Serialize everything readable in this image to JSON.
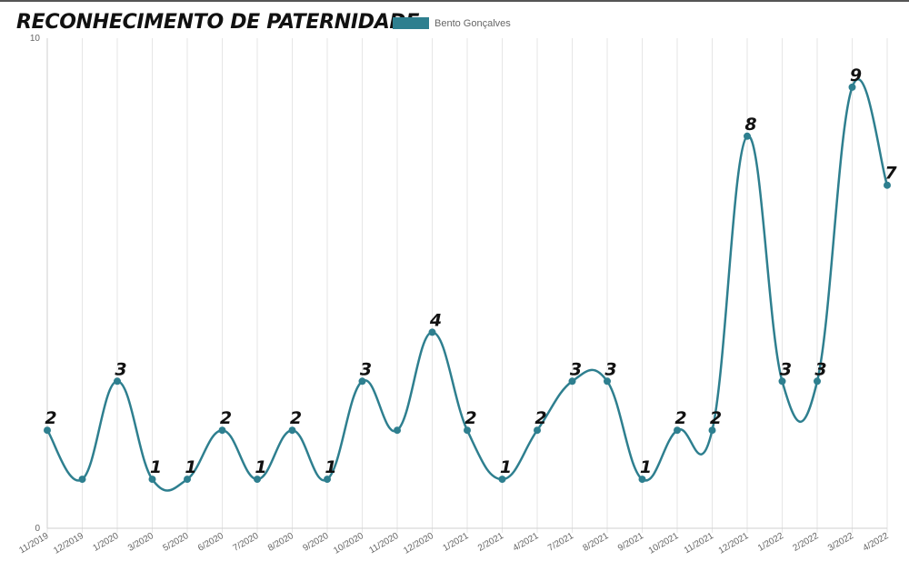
{
  "chart_data": {
    "type": "line",
    "title": "RECONHECIMENTO DE PATERNIDADE",
    "categories": [
      "11/2019",
      "12/2019",
      "1/2020",
      "3/2020",
      "5/2020",
      "6/2020",
      "7/2020",
      "8/2020",
      "9/2020",
      "10/2020",
      "11/2020",
      "12/2020",
      "1/2021",
      "2/2021",
      "4/2021",
      "7/2021",
      "8/2021",
      "9/2021",
      "10/2021",
      "11/2021",
      "12/2021",
      "1/2022",
      "2/2022",
      "3/2022",
      "4/2022"
    ],
    "series": [
      {
        "name": "Bento Gonçalves",
        "color": "#2e7f8f",
        "values": [
          2,
          1,
          3,
          1,
          1,
          2,
          1,
          2,
          1,
          3,
          2,
          4,
          2,
          1,
          2,
          3,
          3,
          1,
          2,
          2,
          8,
          3,
          3,
          9,
          7
        ],
        "labels": [
          "2",
          "",
          "3",
          "1",
          "1",
          "2",
          "1",
          "2",
          "1",
          "3",
          "",
          "4",
          "2",
          "1",
          "2",
          "3",
          "3",
          "1",
          "2",
          "2",
          "8",
          "3",
          "3",
          "9",
          "7"
        ]
      }
    ],
    "y_ticks": [
      "0",
      "10"
    ],
    "ylim": [
      0,
      10
    ],
    "xlabel": "",
    "ylabel": "",
    "grid": "vertical",
    "legend_position": "top",
    "line_smoothing": "curved"
  }
}
